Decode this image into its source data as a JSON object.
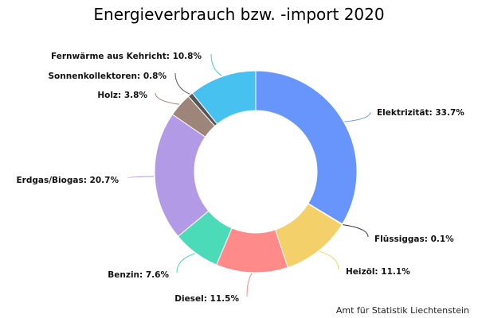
{
  "chart_data": {
    "type": "pie",
    "variant": "donut",
    "title": "Energieverbrauch bzw. -import 2020",
    "credit": "Amt für Statistik Liechtenstein",
    "unit": "%",
    "slices": [
      {
        "name": "Elektrizität",
        "value": 33.7,
        "color": "#6795fc",
        "label": "Elektrizität: 33.7%"
      },
      {
        "name": "Flüssiggas",
        "value": 0.1,
        "color": "#333333",
        "label": "Flüssiggas: 0.1%"
      },
      {
        "name": "Heizöl",
        "value": 11.1,
        "color": "#f4d06b",
        "label": "Heizöl: 11.1%"
      },
      {
        "name": "Diesel",
        "value": 11.5,
        "color": "#fe8b8a",
        "label": "Diesel: 11.5%"
      },
      {
        "name": "Benzin",
        "value": 7.6,
        "color": "#4cdbb8",
        "label": "Benzin: 7.6%"
      },
      {
        "name": "Erdgas/Biogas",
        "value": 20.7,
        "color": "#b39ae6",
        "label": "Erdgas/Biogas: 20.7%"
      },
      {
        "name": "Holz",
        "value": 3.8,
        "color": "#9e857a",
        "label": "Holz: 3.8%"
      },
      {
        "name": "Sonnenkollektoren",
        "value": 0.8,
        "color": "#555555",
        "label": "Sonnenkollektoren: 0.8%"
      },
      {
        "name": "Fernwärme aus Kehricht",
        "value": 10.8,
        "color": "#47c2f0",
        "label": "Fernwärme aus Kehricht: 10.8%"
      }
    ]
  }
}
